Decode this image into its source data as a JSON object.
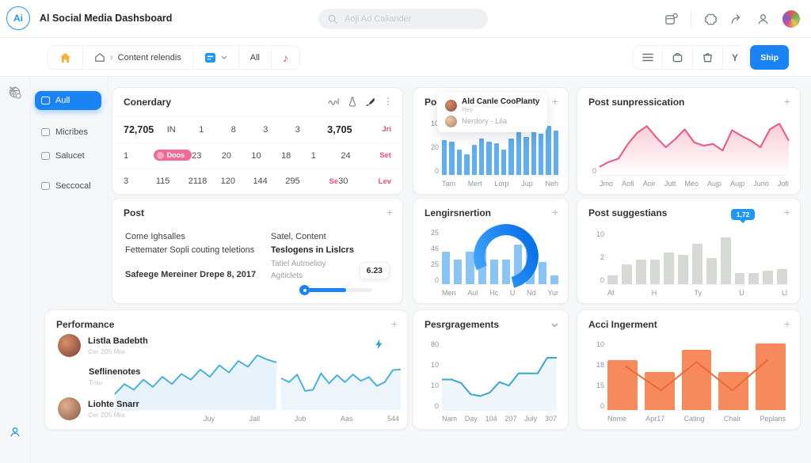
{
  "app": {
    "logo": "Ai",
    "title": "Al Social Media Dashsboard"
  },
  "header": {
    "search_placeholder": "Aoji Ad Caliander"
  },
  "toolbar": {
    "breadcrumb_text": "Content relendis",
    "filter_all": "All",
    "y_label": "Y",
    "ship_label": "Ship"
  },
  "sidebar": {
    "items": [
      {
        "label": "Aull"
      },
      {
        "label": "Micribes"
      },
      {
        "label": "Salucet"
      },
      {
        "label": "Seccocal"
      }
    ]
  },
  "cards": {
    "conerdary": {
      "title": "Conerdary",
      "rows": [
        [
          {
            "t": "72,705",
            "k": "big"
          },
          {
            "t": "IN"
          },
          {
            "t": "1"
          },
          {
            "t": "8"
          },
          {
            "t": "3"
          },
          {
            "t": "3"
          },
          {
            "t": "3,705",
            "k": "big"
          },
          {
            "t": "Jri",
            "k": "pink"
          }
        ],
        [
          {
            "t": "1"
          },
          {
            "t": "Doos",
            "k": "pill"
          },
          {
            "t": "23"
          },
          {
            "t": "20"
          },
          {
            "t": "10"
          },
          {
            "t": "18"
          },
          {
            "t": "1"
          },
          {
            "t": "24"
          },
          {
            "t": "Set",
            "k": "pink"
          }
        ],
        [
          {
            "t": "3"
          },
          {
            "t": "115"
          },
          {
            "t": "2118"
          },
          {
            "t": "120"
          },
          {
            "t": "144"
          },
          {
            "t": "295"
          },
          {
            "t": "Se",
            "k": "pink"
          },
          {
            "t": "30"
          },
          {
            "t": "Lev",
            "k": "pink"
          }
        ]
      ]
    },
    "post_suggestions": {
      "title": "Post suggestions",
      "tooltip_name": "Ald Canle CooPlanty",
      "tooltip_sub": "Hey",
      "tooltip_second": "Nerdory - Lila"
    },
    "post_sunpressication": {
      "title": "Post sunpressication"
    },
    "post": {
      "title": "Post",
      "left1": "Come Ighsalles",
      "left2": "Fettemater Sopli couting teletions",
      "left3": "Safeege Mereiner Drepe 8, 2017",
      "right1": "Satel, Content",
      "right2": "Teslogens in Lislcrs",
      "right3": "Tatiel Autmelioy",
      "right4": "Agiticlets",
      "value": "6.23"
    },
    "lengirsnertion": {
      "title": "Lengirsnertion"
    },
    "post_suggestians": {
      "title": "Post suggestians",
      "tooltip": "1,72"
    },
    "performance": {
      "title": "Performance",
      "people": [
        {
          "name": "Listla Badebth",
          "sub": "Cer 205 Mia"
        },
        {
          "name": "Seflinenotes",
          "sub": "Trau"
        },
        {
          "name": "Liohte Snarr",
          "sub": "Cer 205 Mia"
        }
      ]
    },
    "pesrgragements": {
      "title": "Pesrgragements"
    },
    "acci_ingerment": {
      "title": "Acci Ingerment"
    }
  },
  "colors": {
    "accent": "#1b84f5",
    "pink": "#ee5f83",
    "orange": "#f68a5d",
    "cyan": "#45b1d8",
    "gray_bar": "#d6d9d4"
  },
  "chart_data": {
    "post_suggestions_top": {
      "type": "bar",
      "bars": {
        "values": [
          22,
          21,
          16,
          13,
          19,
          23,
          21,
          20,
          16,
          23,
          28,
          24,
          28,
          26,
          31,
          28
        ],
        "max": 35,
        "color": "#5faeef",
        "gap": 3,
        "radius": 1
      },
      "yticks": [
        "10",
        "20",
        "0"
      ],
      "xlabels": [
        "Tam",
        "Mert",
        "Lorp",
        "Jup",
        "Neh"
      ]
    },
    "post_sunpressication": {
      "type": "area",
      "line": {
        "values": [
          1.0,
          1.6,
          2.0,
          3.8,
          5.2,
          6.0,
          4.6,
          3.4,
          4.4,
          5.6,
          4.0,
          3.6,
          3.8,
          3.0,
          5.5,
          4.8,
          4.2,
          3.4,
          5.6,
          6.3,
          4.2
        ],
        "max": 7,
        "color": "#e8577c",
        "width": 2,
        "gradient": [
          "rgba(238,93,130,0.32)",
          "rgba(238,93,130,0)"
        ]
      },
      "yticks": [
        "0"
      ],
      "xlabels": [
        "Jmo",
        "Aofi",
        "Aoir",
        "Jutt",
        "Meo",
        "Aujp",
        "Aujp",
        "Juno",
        "Jofi"
      ]
    },
    "lengirsnertion": {
      "type": "bar+donut",
      "bars": {
        "values": [
          29,
          22,
          29,
          31,
          22,
          22,
          36,
          31,
          20,
          8
        ],
        "max": 50,
        "color": "#8ac4f4",
        "gap": 5,
        "radius": 1
      },
      "donut": {
        "color": "#3aa0f9",
        "color2": "#0c74ea",
        "visible": 78,
        "rotate": 155
      },
      "yticks": [
        "25",
        "46",
        "25",
        "0"
      ],
      "xlabels": [
        "Men",
        "Aul",
        "Hc",
        "U",
        "Nd",
        "Yur"
      ]
    },
    "post_suggestians": {
      "type": "bar",
      "bars": {
        "values": [
          2,
          4.5,
          5.5,
          5.5,
          7,
          6.5,
          9,
          5.8,
          10.5,
          2.5,
          2.5,
          3,
          3.3
        ],
        "max": 12,
        "color": "#d6d9d4",
        "gap": 5,
        "radius": 1
      },
      "yticks": [
        "10",
        "2",
        "0"
      ],
      "xlabels": [
        "Af",
        "H",
        "Ty",
        "U",
        "Ll"
      ]
    },
    "performance_a": {
      "type": "area",
      "line": {
        "values": [
          2.2,
          3.6,
          2.8,
          4.2,
          3.2,
          4.6,
          3.6,
          5.0,
          4.2,
          5.6,
          4.6,
          6.2,
          5.2,
          6.8,
          6.0,
          7.6,
          7.0,
          6.6
        ],
        "max": 9,
        "color": "#4ab2d9",
        "width": 2,
        "fill": "rgba(214,232,245,0.55)"
      }
    },
    "performance_b": {
      "type": "area",
      "line": {
        "values": [
          5,
          4.4,
          5.6,
          3.0,
          3.2,
          5.8,
          4.2,
          5.5,
          4.4,
          5.6,
          4.6,
          5.2,
          3.8,
          4.4,
          6.3,
          6.4
        ],
        "max": 9,
        "color": "#4ab2d9",
        "width": 2,
        "fill": "rgba(222,236,247,0.55)"
      }
    },
    "performance_axis": {
      "xlabels": [
        "Juy",
        "Jall",
        "Jub",
        "Aas",
        "544"
      ]
    },
    "pesrgragements": {
      "type": "area",
      "line": {
        "values": [
          7,
          7,
          6.2,
          3.6,
          3.2,
          4,
          6.4,
          5.6,
          8.4,
          8.4,
          8.4,
          12,
          12
        ],
        "max": 16,
        "color": "#37a9cf",
        "width": 2,
        "fill": "rgba(221,235,247,0.5)"
      },
      "yticks": [
        "80",
        "10",
        "10",
        "0"
      ],
      "xlabels": [
        "Nam",
        "Day",
        "104",
        "207",
        "July",
        "307"
      ]
    },
    "acci_ingerment": {
      "type": "bar+line",
      "bars": {
        "values": [
          7.2,
          5.5,
          8.6,
          5.5,
          9.6
        ],
        "max": 10,
        "color": "#f68a5d",
        "gap": 9,
        "radius": 2
      },
      "line": {
        "values": [
          6.3,
          2.8,
          6.9,
          2.8,
          7.2
        ],
        "max": 10,
        "color": "#ec6a33",
        "width": 2,
        "centers": true
      },
      "yticks": [
        "10",
        "18",
        "15",
        "0"
      ],
      "xlabels": [
        "Nome",
        "Apr17",
        "Cating",
        "Chalr",
        "Peplans"
      ]
    }
  }
}
